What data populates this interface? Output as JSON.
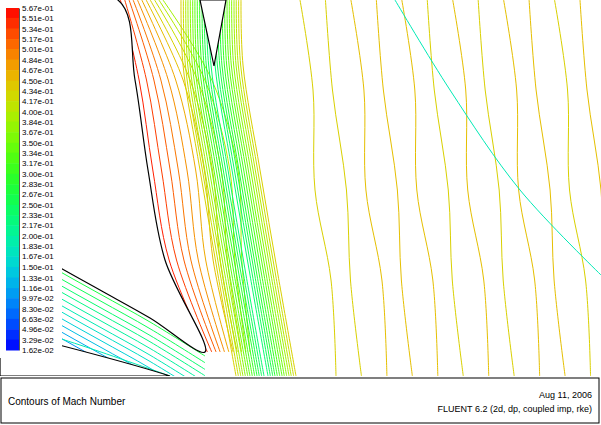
{
  "chart_data": {
    "type": "contour",
    "title": "Contours of Mach Number",
    "date": "Aug 11, 2006",
    "subtitle": "FLUENT 6.2 (2d, dp, coupled imp, rke)",
    "colorbar": {
      "lim": [
        0.0162,
        0.567
      ],
      "ticks": [
        {
          "value": 0.567,
          "label": "5.67e-01"
        },
        {
          "value": 0.551,
          "label": "5.51e-01"
        },
        {
          "value": 0.534,
          "label": "5.34e-01"
        },
        {
          "value": 0.517,
          "label": "5.17e-01"
        },
        {
          "value": 0.501,
          "label": "5.01e-01"
        },
        {
          "value": 0.484,
          "label": "4.84e-01"
        },
        {
          "value": 0.467,
          "label": "4.67e-01"
        },
        {
          "value": 0.45,
          "label": "4.50e-01"
        },
        {
          "value": 0.434,
          "label": "4.34e-01"
        },
        {
          "value": 0.417,
          "label": "4.17e-01"
        },
        {
          "value": 0.4,
          "label": "4.00e-01"
        },
        {
          "value": 0.384,
          "label": "3.84e-01"
        },
        {
          "value": 0.367,
          "label": "3.67e-01"
        },
        {
          "value": 0.35,
          "label": "3.50e-01"
        },
        {
          "value": 0.334,
          "label": "3.34e-01"
        },
        {
          "value": 0.317,
          "label": "3.17e-01"
        },
        {
          "value": 0.3,
          "label": "3.00e-01"
        },
        {
          "value": 0.283,
          "label": "2.83e-01"
        },
        {
          "value": 0.267,
          "label": "2.67e-01"
        },
        {
          "value": 0.25,
          "label": "2.50e-01"
        },
        {
          "value": 0.233,
          "label": "2.33e-01"
        },
        {
          "value": 0.217,
          "label": "2.17e-01"
        },
        {
          "value": 0.2,
          "label": "2.00e-01"
        },
        {
          "value": 0.183,
          "label": "1.83e-01"
        },
        {
          "value": 0.167,
          "label": "1.67e-01"
        },
        {
          "value": 0.15,
          "label": "1.50e-01"
        },
        {
          "value": 0.133,
          "label": "1.33e-01"
        },
        {
          "value": 0.116,
          "label": "1.16e-01"
        },
        {
          "value": 0.0997,
          "label": "9.97e-02"
        },
        {
          "value": 0.083,
          "label": "8.30e-02"
        },
        {
          "value": 0.0663,
          "label": "6.63e-02"
        },
        {
          "value": 0.0496,
          "label": "4.96e-02"
        },
        {
          "value": 0.0329,
          "label": "3.29e-02"
        },
        {
          "value": 0.0162,
          "label": "1.62e-02"
        }
      ]
    },
    "contours": [
      [
        0.551,
        0.534,
        0.517,
        0.501,
        0.484,
        0.467,
        0.45,
        0.434,
        0.417,
        0.4,
        0.384
      ],
      [
        0.233,
        0.25,
        0.267,
        0.283,
        0.3,
        0.317,
        0.334,
        0.35,
        0.367,
        0.384,
        0.4,
        0.417,
        0.434
      ],
      [
        0.434,
        0.434,
        0.45,
        0.45,
        0.45,
        0.434,
        0.45,
        0.434,
        0.45,
        0.45,
        0.434,
        0.45
      ],
      [
        0.267,
        0.25,
        0.233,
        0.217,
        0.2,
        0.183,
        0.167,
        0.15,
        0.133,
        0.116,
        0.0997
      ],
      [
        0.183,
        0.183
      ]
    ]
  }
}
